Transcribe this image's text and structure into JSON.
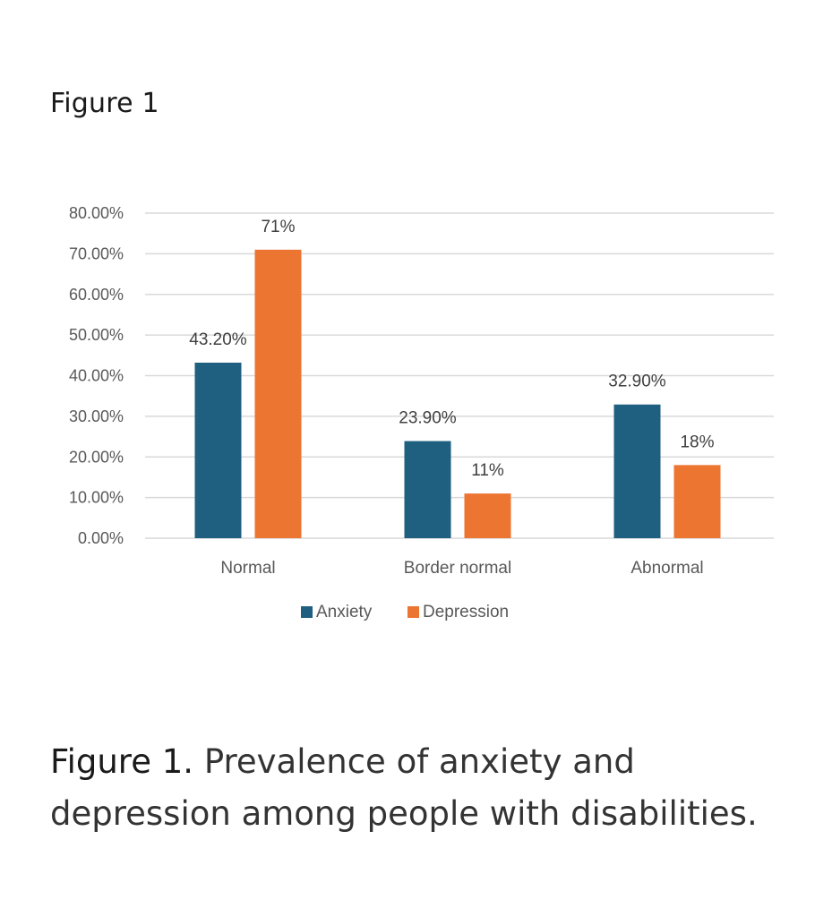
{
  "heading": "Figure 1",
  "caption": {
    "label": "Figure 1.",
    "text": "Prevalence of anxiety and depression among people with disabilities."
  },
  "colors": {
    "anxiety": "#1f5f80",
    "depression": "#ed7532",
    "grid": "#d9d9d9"
  },
  "chart_data": {
    "type": "bar",
    "categories": [
      "Normal",
      "Border normal",
      "Abnormal"
    ],
    "series": [
      {
        "name": "Anxiety",
        "values": [
          43.2,
          23.9,
          32.9
        ],
        "labels": [
          "43.20%",
          "23.90%",
          "32.90%"
        ]
      },
      {
        "name": "Depression",
        "values": [
          71,
          11,
          18
        ],
        "labels": [
          "71%",
          "11%",
          "18%"
        ]
      }
    ],
    "ylim": [
      0,
      80
    ],
    "yticks": [
      "0.00%",
      "10.00%",
      "20.00%",
      "30.00%",
      "40.00%",
      "50.00%",
      "60.00%",
      "70.00%",
      "80.00%"
    ],
    "grid": true,
    "legend": "bottom-center"
  }
}
